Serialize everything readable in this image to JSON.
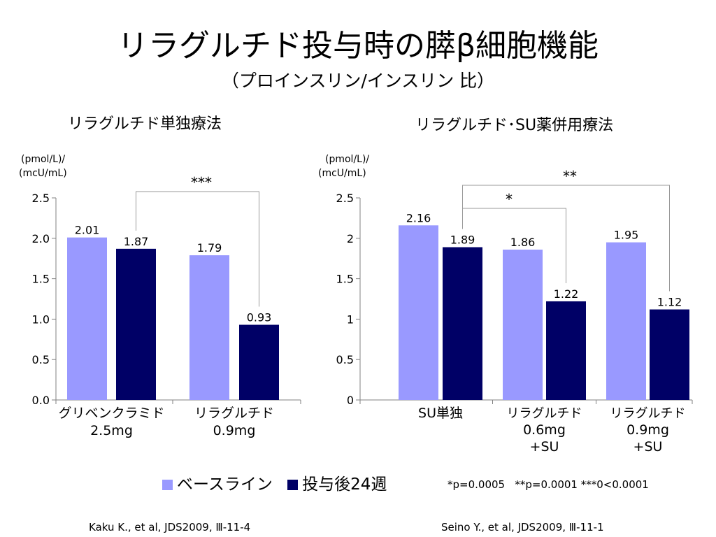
{
  "title": "リラグルチド投与時の膵β細胞機能",
  "subtitle": "（プロインスリン/インスリン 比）",
  "colors": {
    "baseline": "#9999ff",
    "week24": "#000066",
    "bracket": "#999999",
    "axis": "#808080"
  },
  "legend": {
    "baseline": "ベースライン",
    "week24": "投与後24週"
  },
  "p_note": "*p=0.0005   **p=0.0001 ***0<0.0001",
  "references": [
    "Kaku K., et al, JDS2009, Ⅲ-11-4",
    "Seino Y., et al, JDS2009, Ⅲ-11-1"
  ],
  "chart_data": [
    {
      "type": "bar",
      "title": "リラグルチド単独療法",
      "ylabel": [
        "(pmol/L)/",
        "(mcU/mL)"
      ],
      "ylim": [
        0,
        2.5
      ],
      "yticks": [
        "0.0",
        "0.5",
        "1.0",
        "1.5",
        "2.0",
        "2.5"
      ],
      "categories": [
        [
          "グリベンクラミド",
          "2.5mg"
        ],
        [
          "リラグルチド",
          "0.9mg"
        ]
      ],
      "series": [
        {
          "name": "ベースライン",
          "values": [
            2.01,
            1.79
          ],
          "labels": [
            "2.01",
            "1.79"
          ]
        },
        {
          "name": "投与後24週",
          "values": [
            1.87,
            0.93
          ],
          "labels": [
            "1.87",
            "0.93"
          ]
        }
      ],
      "significance": [
        {
          "label": "***"
        }
      ]
    },
    {
      "type": "bar",
      "title": "リラグルチド･SU薬併用療法",
      "ylabel": [
        "(pmol/L)/",
        "(mcU/mL)"
      ],
      "ylim": [
        0,
        2.5
      ],
      "yticks": [
        "0",
        "0.5",
        "1",
        "1.5",
        "2",
        "2.5"
      ],
      "categories": [
        [
          "SU単独"
        ],
        [
          "リラグルチド",
          "0.6mg",
          "+SU"
        ],
        [
          "リラグルチド",
          "0.9mg",
          "+SU"
        ]
      ],
      "series": [
        {
          "name": "ベースライン",
          "values": [
            2.16,
            1.86,
            1.95
          ],
          "labels": [
            "2.16",
            "1.86",
            "1.95"
          ]
        },
        {
          "name": "投与後24週",
          "values": [
            1.89,
            1.22,
            1.12
          ],
          "labels": [
            "1.89",
            "1.22",
            "1.12"
          ]
        }
      ],
      "significance": [
        {
          "label": "*"
        },
        {
          "label": "**"
        }
      ]
    }
  ]
}
